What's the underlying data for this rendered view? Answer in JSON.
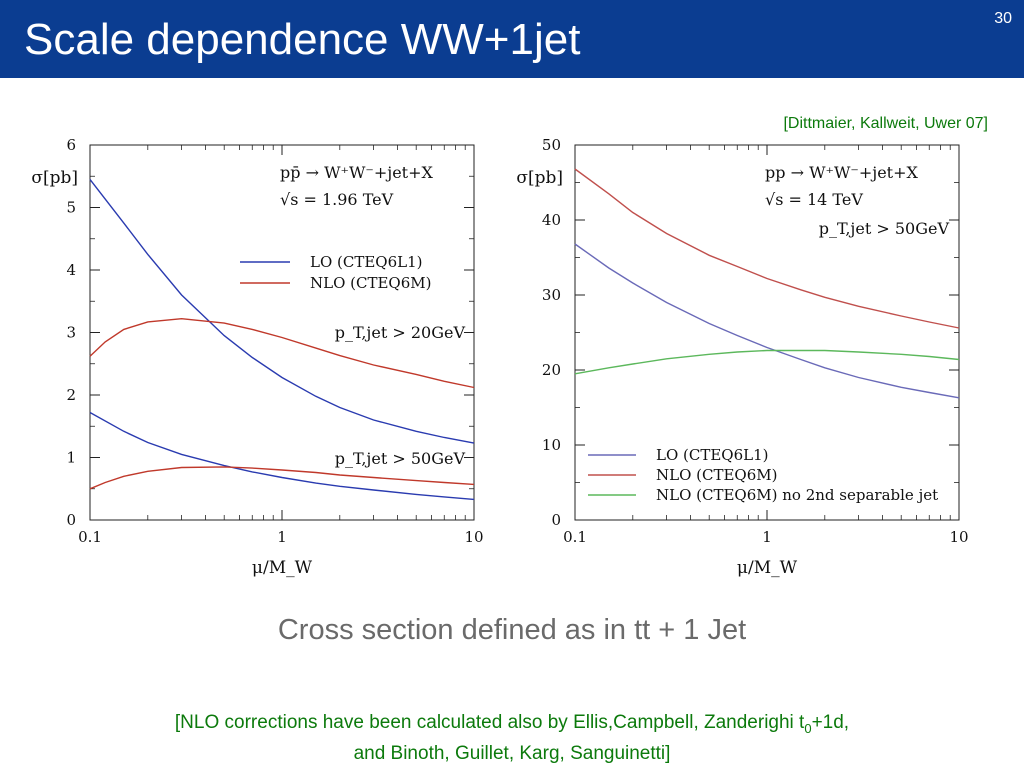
{
  "slide": {
    "title": "Scale dependence WW+1jet",
    "page_number": "30",
    "citation": "[Dittmaier, Kallweit, Uwer 07]",
    "subtitle": "Cross section defined as in tt + 1 Jet",
    "footnote_part1": "[NLO corrections have been calculated also by Ellis,Campbell, Zanderighi t",
    "footnote_sub": "0",
    "footnote_part2": "+1d,",
    "footnote_line2": "and Binoth, Guillet, Karg, Sanguinetti]"
  },
  "chart_data": [
    {
      "type": "line",
      "xscale": "log",
      "xlim": [
        0.1,
        10
      ],
      "ylim": [
        0,
        6
      ],
      "xticks": [
        {
          "v": 0.1,
          "label": "0.1"
        },
        {
          "v": 1,
          "label": "1"
        },
        {
          "v": 10,
          "label": "10"
        }
      ],
      "yticks": [
        {
          "v": 0,
          "label": "0"
        },
        {
          "v": 1,
          "label": "1"
        },
        {
          "v": 2,
          "label": "2"
        },
        {
          "v": 3,
          "label": "3"
        },
        {
          "v": 4,
          "label": "4"
        },
        {
          "v": 5,
          "label": "5"
        },
        {
          "v": 6,
          "label": "6"
        }
      ],
      "xlabel": "μ/M_W",
      "ylabel": "σ[pb]",
      "process": "pp̄ → W⁺W⁻+jet+X",
      "energy": "√s = 1.96 TeV",
      "legend": [
        {
          "label": "LO (CTEQ6L1)",
          "color": "#2a3bb0"
        },
        {
          "label": "NLO (CTEQ6M)",
          "color": "#c0392b"
        }
      ],
      "annotations": [
        "p_T,jet > 20GeV",
        "p_T,jet > 50GeV"
      ],
      "series": [
        {
          "cut": "p_T,jet > 20GeV",
          "order": "LO",
          "color": "#2a3bb0",
          "x": [
            0.1,
            0.15,
            0.2,
            0.3,
            0.5,
            0.7,
            1,
            1.5,
            2,
            3,
            5,
            7,
            10
          ],
          "y": [
            5.45,
            4.75,
            4.25,
            3.6,
            2.95,
            2.6,
            2.28,
            1.98,
            1.8,
            1.6,
            1.42,
            1.32,
            1.23
          ]
        },
        {
          "cut": "p_T,jet > 20GeV",
          "order": "NLO",
          "color": "#c0392b",
          "x": [
            0.1,
            0.12,
            0.15,
            0.2,
            0.3,
            0.5,
            0.7,
            1,
            1.5,
            2,
            3,
            5,
            7,
            10
          ],
          "y": [
            2.62,
            2.85,
            3.05,
            3.17,
            3.22,
            3.15,
            3.05,
            2.92,
            2.75,
            2.63,
            2.48,
            2.33,
            2.22,
            2.12
          ]
        },
        {
          "cut": "p_T,jet > 50GeV",
          "order": "LO",
          "color": "#2a3bb0",
          "x": [
            0.1,
            0.15,
            0.2,
            0.3,
            0.5,
            0.7,
            1,
            1.5,
            2,
            3,
            5,
            7,
            10
          ],
          "y": [
            1.72,
            1.42,
            1.24,
            1.05,
            0.87,
            0.77,
            0.68,
            0.59,
            0.54,
            0.48,
            0.41,
            0.37,
            0.33
          ]
        },
        {
          "cut": "p_T,jet > 50GeV",
          "order": "NLO",
          "color": "#c0392b",
          "x": [
            0.1,
            0.12,
            0.15,
            0.2,
            0.3,
            0.5,
            0.7,
            1,
            1.5,
            2,
            3,
            5,
            7,
            10
          ],
          "y": [
            0.5,
            0.6,
            0.7,
            0.78,
            0.84,
            0.85,
            0.83,
            0.8,
            0.76,
            0.72,
            0.68,
            0.63,
            0.6,
            0.57
          ]
        }
      ]
    },
    {
      "type": "line",
      "xscale": "log",
      "xlim": [
        0.1,
        10
      ],
      "ylim": [
        0,
        50
      ],
      "xticks": [
        {
          "v": 0.1,
          "label": "0.1"
        },
        {
          "v": 1,
          "label": "1"
        },
        {
          "v": 10,
          "label": "10"
        }
      ],
      "yticks": [
        {
          "v": 0,
          "label": "0"
        },
        {
          "v": 10,
          "label": "10"
        },
        {
          "v": 20,
          "label": "20"
        },
        {
          "v": 30,
          "label": "30"
        },
        {
          "v": 40,
          "label": "40"
        },
        {
          "v": 50,
          "label": "50"
        }
      ],
      "xlabel": "μ/M_W",
      "ylabel": "σ[pb]",
      "process": "pp → W⁺W⁻+jet+X",
      "energy": "√s = 14 TeV",
      "annotations": [
        "p_T,jet > 50GeV"
      ],
      "legend": [
        {
          "label": "LO (CTEQ6L1)",
          "color": "#6a6ab8"
        },
        {
          "label": "NLO (CTEQ6M)",
          "color": "#c0504d"
        },
        {
          "label": "NLO (CTEQ6M) no 2nd separable jet",
          "color": "#5cb85c"
        }
      ],
      "series": [
        {
          "order": "LO",
          "color": "#6a6ab8",
          "x": [
            0.1,
            0.15,
            0.2,
            0.3,
            0.5,
            0.7,
            1,
            1.5,
            2,
            3,
            5,
            7,
            10
          ],
          "y": [
            36.8,
            33.6,
            31.6,
            29.0,
            26.2,
            24.6,
            23.0,
            21.4,
            20.3,
            19.0,
            17.7,
            17.0,
            16.3
          ]
        },
        {
          "order": "NLO",
          "color": "#c0504d",
          "x": [
            0.1,
            0.15,
            0.2,
            0.3,
            0.5,
            0.7,
            1,
            1.5,
            2,
            3,
            5,
            7,
            10
          ],
          "y": [
            46.8,
            43.5,
            41.0,
            38.2,
            35.3,
            33.8,
            32.2,
            30.7,
            29.7,
            28.5,
            27.2,
            26.4,
            25.6
          ]
        },
        {
          "order": "NLO no 2nd separable jet",
          "color": "#5cb85c",
          "x": [
            0.1,
            0.15,
            0.2,
            0.3,
            0.5,
            0.7,
            1,
            1.5,
            2,
            3,
            5,
            7,
            10
          ],
          "y": [
            19.5,
            20.3,
            20.8,
            21.5,
            22.1,
            22.4,
            22.6,
            22.6,
            22.6,
            22.4,
            22.1,
            21.8,
            21.4
          ]
        }
      ]
    }
  ]
}
